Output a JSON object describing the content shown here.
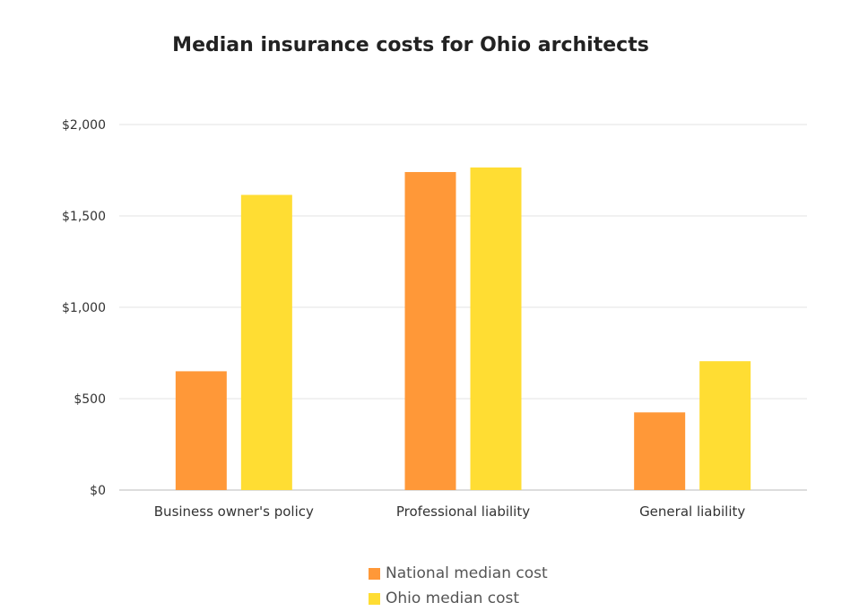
{
  "chart_data": {
    "type": "bar",
    "title": "Median insurance costs for Ohio architects",
    "categories": [
      "Business owner's policy",
      "Professional liability",
      "General liability"
    ],
    "series": [
      {
        "name": "National median cost",
        "values": [
          650,
          1740,
          425
        ],
        "color": "#FF9838"
      },
      {
        "name": "Ohio median cost",
        "values": [
          1615,
          1765,
          705
        ],
        "color": "#FFDD33"
      }
    ],
    "ylim": [
      0,
      2000
    ],
    "yticks": [
      0,
      500,
      1000,
      1500,
      2000
    ],
    "ytick_labels": [
      "$0",
      "$500",
      "$1,000",
      "$1,500",
      "$2,000"
    ],
    "xlabel": "",
    "ylabel": "",
    "grid": true,
    "legend_position": "bottom"
  }
}
